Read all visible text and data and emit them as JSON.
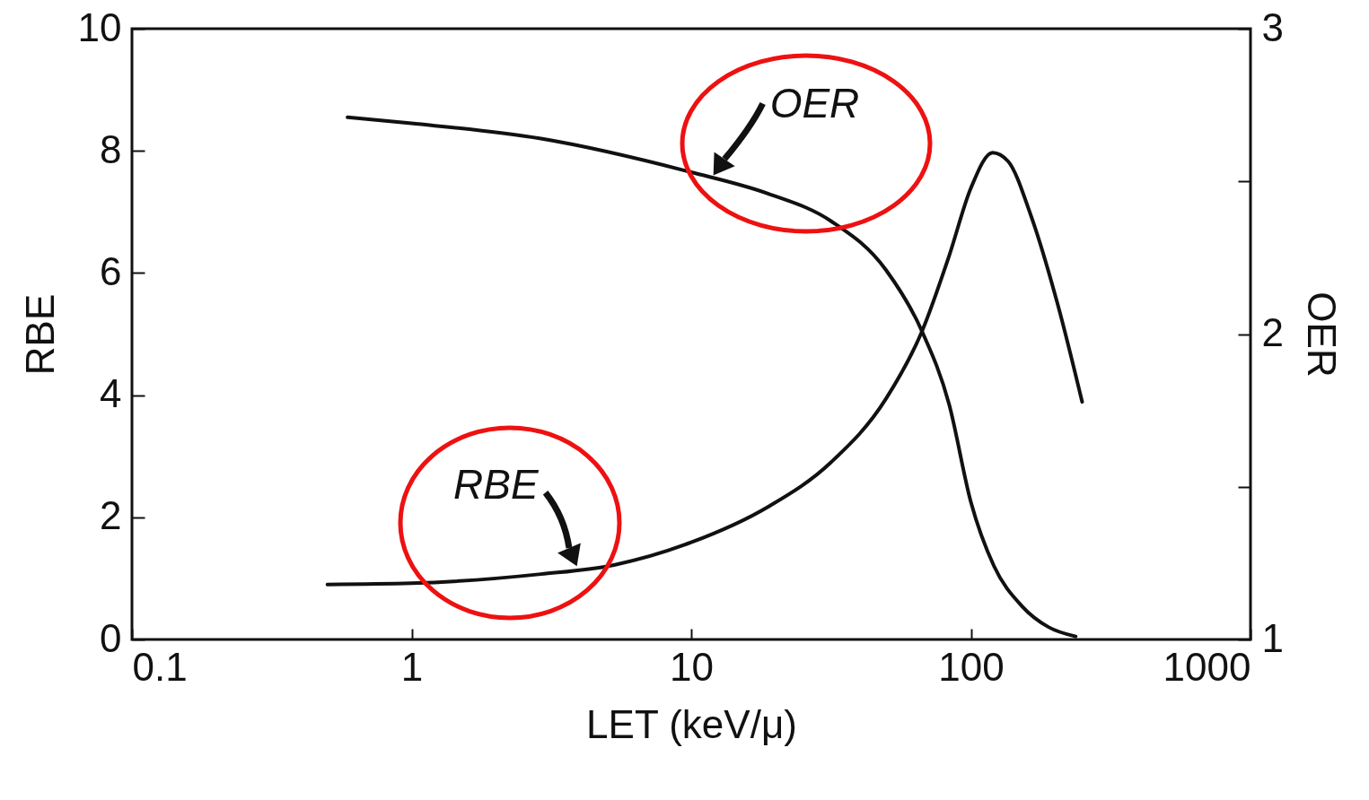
{
  "chart_data": {
    "type": "line",
    "xlabel": "LET (keV/μ)",
    "ylabel": "RBE",
    "y2label": "OER",
    "log": "x",
    "xlim": [
      0.1,
      1000
    ],
    "xticks": [
      0.1,
      1,
      10,
      100,
      1000
    ],
    "ylim": [
      0,
      10
    ],
    "yticks": [
      0,
      2,
      4,
      6,
      8,
      10
    ],
    "y2lim": [
      1,
      3
    ],
    "y2ticks": [
      1,
      {
        "value": 1.5,
        "label": null
      },
      2,
      {
        "value": 2.5,
        "label": null
      },
      3
    ],
    "grid": false,
    "marker": "none",
    "line_style": "solid",
    "series": [
      {
        "color": "#111111",
        "x": [
          0.5,
          1,
          2.9,
          5.3,
          10,
          18.8,
          31.6,
          49.7,
          66.8,
          83.6,
          100,
          119.6,
          135.8,
          163.7,
          204.6,
          250
        ],
        "values": [
          0.9,
          0.92,
          1.07,
          1.22,
          1.59,
          2.17,
          2.9,
          3.94,
          5.04,
          6.28,
          7.39,
          7.97,
          7.83,
          6.95,
          5.48,
          3.89
        ]
      },
      {
        "color": "#111111",
        "axis": "y2",
        "x": [
          0.59,
          1,
          2.9,
          10,
          18.8,
          31.6,
          49.7,
          66.8,
          83.6,
          100,
          121,
          152,
          190,
          237
        ],
        "values": [
          2.71,
          2.69,
          2.64,
          2.53,
          2.46,
          2.37,
          2.21,
          2.01,
          1.77,
          1.45,
          1.24,
          1.11,
          1.04,
          1.01
        ]
      }
    ],
    "annotations": [
      {
        "text": "OER",
        "x": 12,
        "y": 7.6
      },
      {
        "text": "RBE",
        "x": 3.9,
        "y": 1.2
      }
    ]
  }
}
